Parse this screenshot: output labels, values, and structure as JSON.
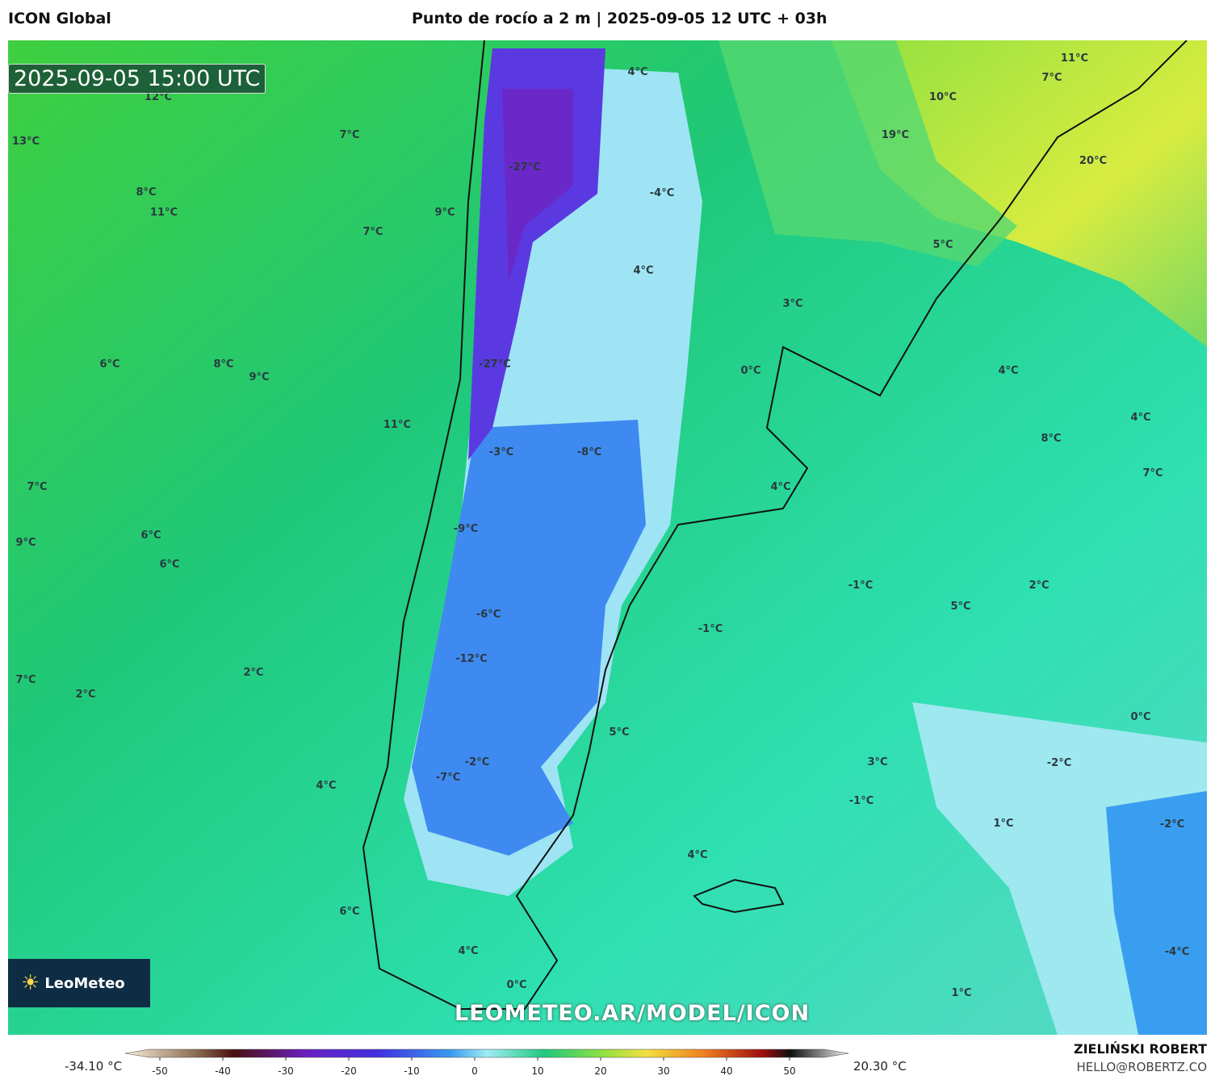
{
  "header": {
    "model": "ICON Global",
    "title": "Punto de rocío a 2 m | 2025-09-05 12 UTC + 03h"
  },
  "timestamp": "2025-09-05 15:00 UTC",
  "logo": "LeoMeteo",
  "watermark": "LEOMETEO.AR/MODEL/ICON",
  "map": {
    "labels": [
      "12°C",
      "13°C",
      "7°C",
      "8°C",
      "11°C",
      "9°C",
      "7°C",
      "-27°C",
      "-4°C",
      "4°C",
      "4°C",
      "6°C",
      "8°C",
      "9°C",
      "-27°C",
      "11°C",
      "-3°C",
      "-8°C",
      "7°C",
      "6°C",
      "9°C",
      "6°C",
      "-9°C",
      "-6°C",
      "-12°C",
      "-1°C",
      "5°C",
      "2°C",
      "-1°C",
      "7°C",
      "2°C",
      "2°C",
      "5°C",
      "-2°C",
      "-7°C",
      "3°C",
      "0°C",
      "-2°C",
      "-1°C",
      "1°C",
      "-2°C",
      "4°C",
      "4°C",
      "6°C",
      "4°C",
      "0°C",
      "1°C",
      "-4°C",
      "11°C",
      "7°C",
      "10°C",
      "19°C",
      "20°C",
      "5°C",
      "3°C",
      "0°C",
      "4°C",
      "4°C",
      "8°C",
      "7°C",
      "4°C"
    ]
  },
  "colorbar": {
    "min_label": "-34.10 °C",
    "max_label": "20.30 °C",
    "ticks": [
      -50,
      -40,
      -30,
      -20,
      -10,
      0,
      10,
      20,
      30,
      40,
      50
    ]
  },
  "author": {
    "name": "ZIELIŃSKI ROBERT",
    "email": "HELLO@ROBERTZ.CO"
  }
}
